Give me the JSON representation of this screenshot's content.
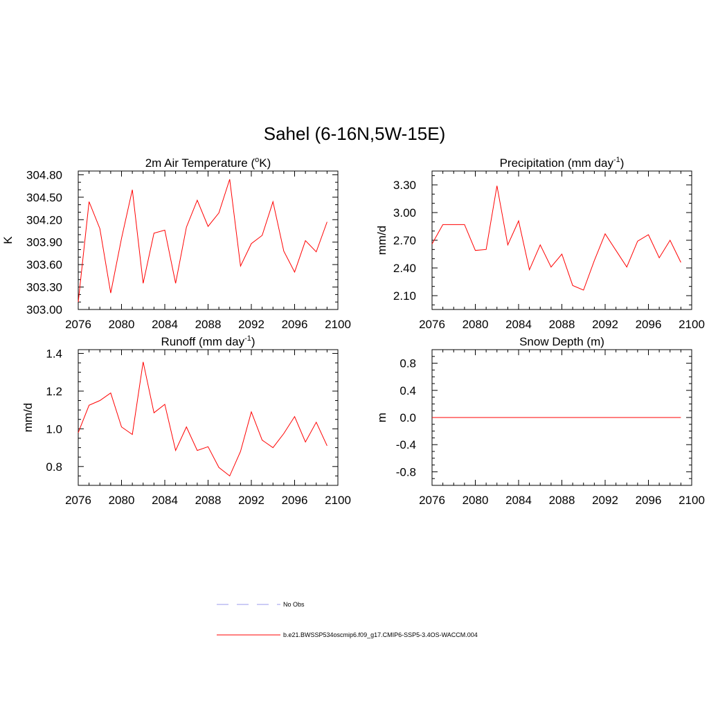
{
  "figure": {
    "title": "Sahel (6-16N,5W-15E)"
  },
  "chart_data": [
    {
      "type": "line",
      "title": "2m Air Temperature (°K)",
      "title_parts": {
        "main": "2m Air Temperature (",
        "sup": "o",
        "tail": "K)"
      },
      "xlabel": "",
      "ylabel": "K",
      "xlim": [
        2076,
        2100
      ],
      "ylim": [
        303.0,
        304.85
      ],
      "xticks": [
        2076,
        2080,
        2084,
        2088,
        2092,
        2096,
        2100
      ],
      "yticks": [
        303.0,
        303.3,
        303.6,
        303.9,
        304.2,
        304.5,
        304.8
      ],
      "ytick_labels": [
        "303.00",
        "303.30",
        "303.60",
        "303.90",
        "304.20",
        "304.50",
        "304.80"
      ],
      "yminor": 0.1,
      "series": [
        {
          "name": "b.e21.BWSSP534oscmip6.f09_g17.CMIP6-SSP5-3.4OS-WACCM.004",
          "color": "#ff0000",
          "x": [
            2076,
            2077,
            2078,
            2079,
            2080,
            2081,
            2082,
            2083,
            2084,
            2085,
            2086,
            2087,
            2088,
            2089,
            2090,
            2091,
            2092,
            2093,
            2094,
            2095,
            2096,
            2097,
            2098,
            2099
          ],
          "values": [
            303.1,
            304.44,
            304.08,
            303.22,
            303.95,
            304.6,
            303.35,
            304.02,
            304.06,
            303.35,
            304.1,
            304.46,
            304.11,
            304.29,
            304.74,
            303.58,
            303.88,
            303.99,
            304.44,
            303.78,
            303.5,
            303.92,
            303.77,
            304.17
          ]
        }
      ]
    },
    {
      "type": "line",
      "title": "Precipitation (mm day-1)",
      "title_parts": {
        "main": "Precipitation (mm day",
        "sup": "-1",
        "tail": ")"
      },
      "xlabel": "",
      "ylabel": "mm/d",
      "xlim": [
        2076,
        2100
      ],
      "ylim": [
        1.95,
        3.45
      ],
      "xticks": [
        2076,
        2080,
        2084,
        2088,
        2092,
        2096,
        2100
      ],
      "yticks": [
        2.1,
        2.4,
        2.7,
        3.0,
        3.3
      ],
      "ytick_labels": [
        "2.10",
        "2.40",
        "2.70",
        "3.00",
        "3.30"
      ],
      "yminor": 0.1,
      "series": [
        {
          "name": "b.e21.BWSSP534oscmip6.f09_g17.CMIP6-SSP5-3.4OS-WACCM.004",
          "color": "#ff0000",
          "x": [
            2076,
            2077,
            2078,
            2079,
            2080,
            2081,
            2082,
            2083,
            2084,
            2085,
            2086,
            2087,
            2088,
            2089,
            2090,
            2091,
            2092,
            2093,
            2094,
            2095,
            2096,
            2097,
            2098,
            2099
          ],
          "values": [
            2.66,
            2.87,
            2.87,
            2.87,
            2.59,
            2.6,
            3.29,
            2.65,
            2.91,
            2.38,
            2.65,
            2.41,
            2.55,
            2.21,
            2.16,
            2.48,
            2.77,
            2.59,
            2.41,
            2.69,
            2.76,
            2.51,
            2.7,
            2.46
          ]
        }
      ]
    },
    {
      "type": "line",
      "title": "Runoff (mm day-1)",
      "title_parts": {
        "main": "Runoff (mm day",
        "sup": "-1",
        "tail": ")"
      },
      "xlabel": "",
      "ylabel": "mm/d",
      "xlim": [
        2076,
        2100
      ],
      "ylim": [
        0.7,
        1.42
      ],
      "xticks": [
        2076,
        2080,
        2084,
        2088,
        2092,
        2096,
        2100
      ],
      "yticks": [
        0.8,
        1.0,
        1.2,
        1.4
      ],
      "ytick_labels": [
        "0.8",
        "1.0",
        "1.2",
        "1.4"
      ],
      "yminor": 0.05,
      "series": [
        {
          "name": "b.e21.BWSSP534oscmip6.f09_g17.CMIP6-SSP5-3.4OS-WACCM.004",
          "color": "#ff0000",
          "x": [
            2076,
            2077,
            2078,
            2079,
            2080,
            2081,
            2082,
            2083,
            2084,
            2085,
            2086,
            2087,
            2088,
            2089,
            2090,
            2091,
            2092,
            2093,
            2094,
            2095,
            2096,
            2097,
            2098,
            2099
          ],
          "values": [
            0.98,
            1.125,
            1.15,
            1.19,
            1.01,
            0.97,
            1.355,
            1.085,
            1.13,
            0.885,
            1.01,
            0.885,
            0.905,
            0.795,
            0.75,
            0.88,
            1.09,
            0.94,
            0.9,
            0.975,
            1.065,
            0.93,
            1.035,
            0.91
          ]
        }
      ]
    },
    {
      "type": "line",
      "title": "Snow Depth (m)",
      "title_parts": {
        "main": "Snow Depth (m)",
        "sup": "",
        "tail": ""
      },
      "xlabel": "",
      "ylabel": "m",
      "xlim": [
        2076,
        2100
      ],
      "ylim": [
        -1.0,
        1.0
      ],
      "xticks": [
        2076,
        2080,
        2084,
        2088,
        2092,
        2096,
        2100
      ],
      "yticks": [
        -0.8,
        -0.4,
        0.0,
        0.4,
        0.8
      ],
      "ytick_labels": [
        "-0.8",
        "-0.4",
        "0.0",
        "0.4",
        "0.8"
      ],
      "yminor": 0.1,
      "series": [
        {
          "name": "b.e21.BWSSP534oscmip6.f09_g17.CMIP6-SSP5-3.4OS-WACCM.004",
          "color": "#ff0000",
          "x": [
            2076,
            2077,
            2078,
            2079,
            2080,
            2081,
            2082,
            2083,
            2084,
            2085,
            2086,
            2087,
            2088,
            2089,
            2090,
            2091,
            2092,
            2093,
            2094,
            2095,
            2096,
            2097,
            2098,
            2099
          ],
          "values": [
            0,
            0,
            0,
            0,
            0,
            0,
            0,
            0,
            0,
            0,
            0,
            0,
            0,
            0,
            0,
            0,
            0,
            0,
            0,
            0,
            0,
            0,
            0,
            0
          ]
        }
      ]
    }
  ],
  "legend": [
    {
      "label": "No Obs",
      "color": "#9999ee",
      "style": "dashed"
    },
    {
      "label": "b.e21.BWSSP534oscmip6.f09_g17.CMIP6-SSP5-3.4OS-WACCM.004",
      "color": "#ff0000",
      "style": "solid"
    }
  ]
}
